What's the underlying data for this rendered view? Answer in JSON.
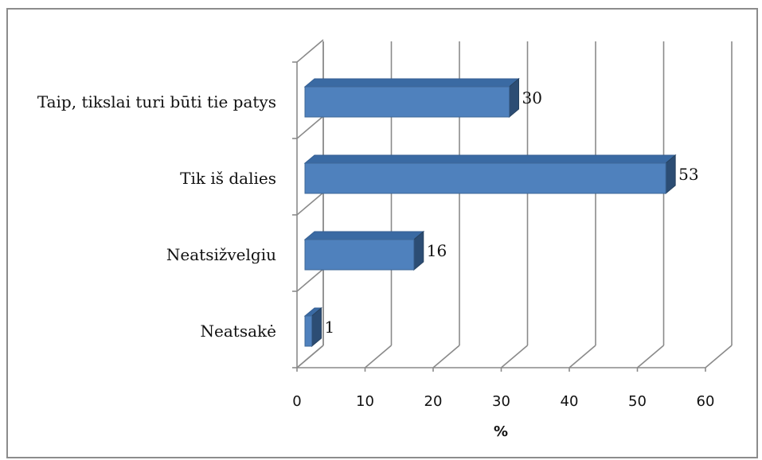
{
  "chart_data": {
    "type": "bar",
    "orientation": "horizontal",
    "three_d": true,
    "categories": [
      "Taip, tikslai turi būti tie patys",
      "Tik iš dalies",
      "Neatsižvelgiu",
      "Neatsakė"
    ],
    "values": [
      30,
      53,
      16,
      1
    ],
    "data_labels": [
      "30",
      "53",
      "16",
      "1"
    ],
    "xlabel": "%",
    "ylabel": "",
    "xlim": [
      0,
      60
    ],
    "ticks": [
      "0",
      "10",
      "20",
      "30",
      "40",
      "50",
      "60"
    ],
    "grid": true,
    "legend": "none",
    "colors": {
      "bar_front": "#4f81bd",
      "bar_top": "#3a6aa3",
      "bar_side": "#2c4d74",
      "grid": "#8a8a8a"
    }
  }
}
